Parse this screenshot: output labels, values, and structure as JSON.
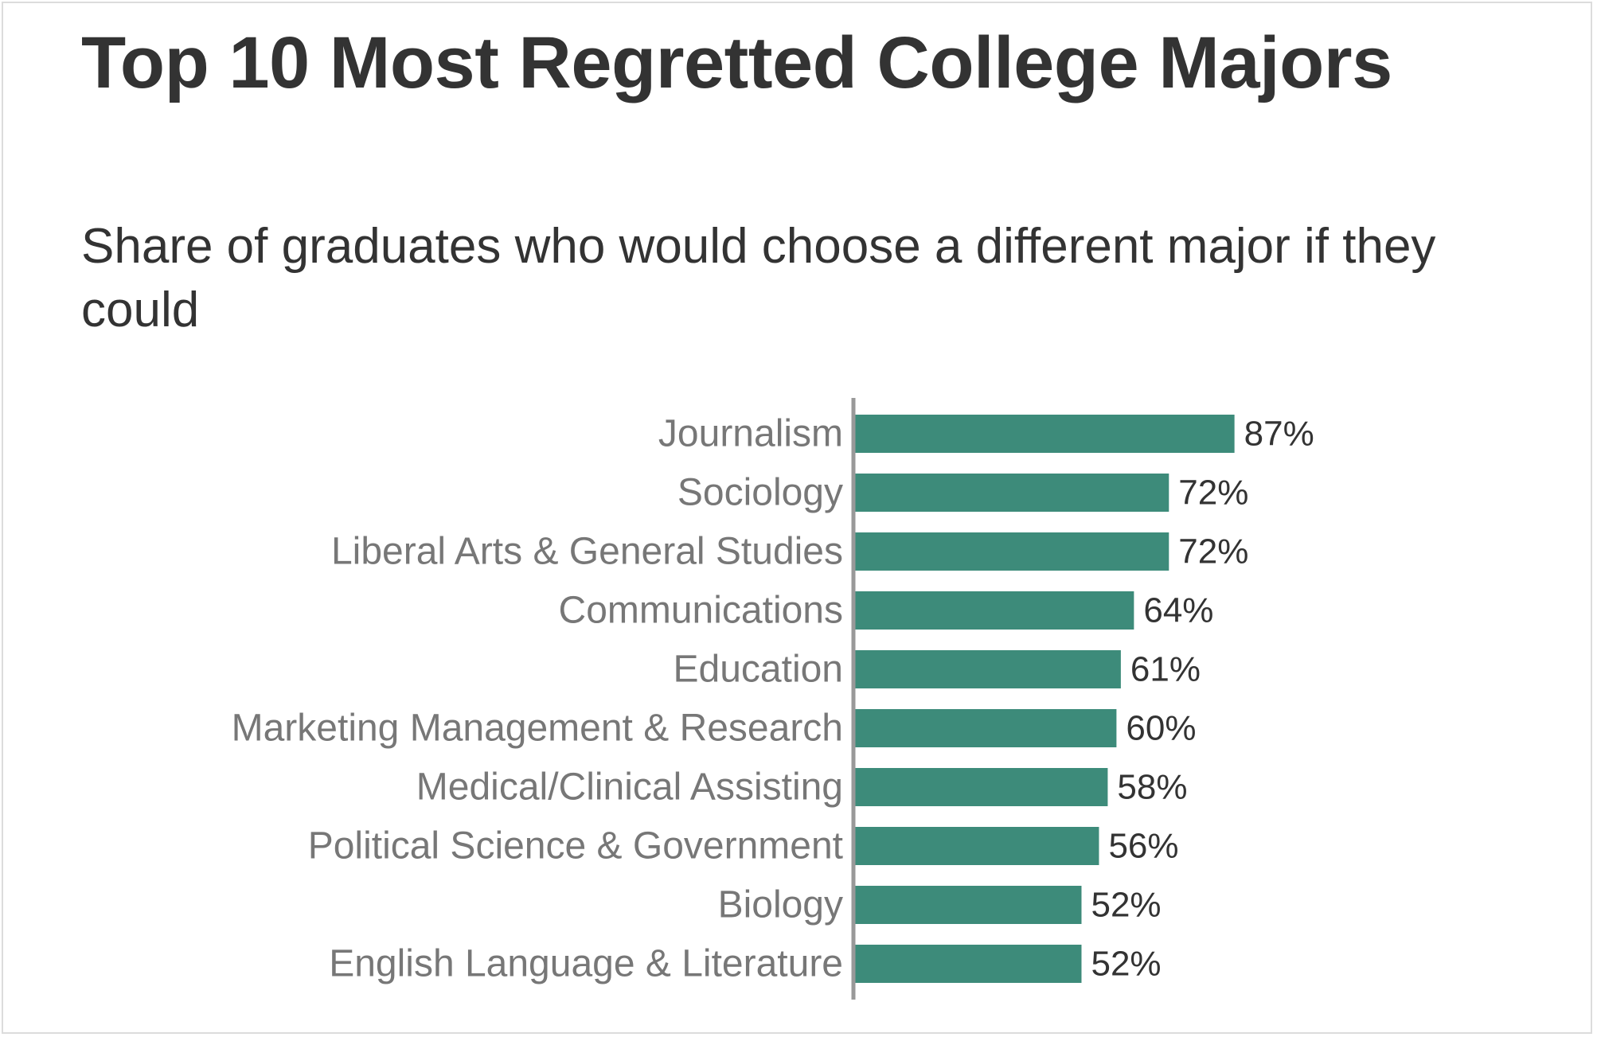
{
  "title": "Top 10 Most Regretted College Majors",
  "subtitle": "Share of graduates who would choose a different major if they could",
  "colors": {
    "bar": "#3d8b7a",
    "axis": "#999999",
    "title_text": "#333333",
    "category_text": "#777777",
    "value_text": "#333333",
    "border": "#dcdcdc"
  },
  "chart_data": {
    "type": "bar",
    "orientation": "horizontal",
    "title": "Top 10 Most Regretted College Majors",
    "subtitle": "Share of graduates who would choose a different major if they could",
    "xlabel": "",
    "ylabel": "",
    "xlim": [
      0,
      100
    ],
    "grid": false,
    "legend": "none",
    "value_suffix": "%",
    "categories": [
      "Journalism",
      "Sociology",
      "Liberal Arts & General Studies",
      "Communications",
      "Education",
      "Marketing Management & Research",
      "Medical/Clinical Assisting",
      "Political Science & Government",
      "Biology",
      "English Language & Literature"
    ],
    "values": [
      87,
      72,
      72,
      64,
      61,
      60,
      58,
      56,
      52,
      52
    ],
    "value_labels": [
      "87%",
      "72%",
      "72%",
      "64%",
      "61%",
      "60%",
      "58%",
      "56%",
      "52%",
      "52%"
    ]
  }
}
